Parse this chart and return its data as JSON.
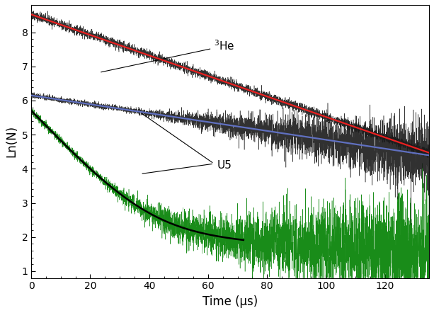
{
  "title": "",
  "xlabel": "Time (μs)",
  "ylabel": "Ln(N)",
  "xlim": [
    0,
    135
  ],
  "ylim": [
    0.8,
    8.8
  ],
  "yticks": [
    1,
    2,
    3,
    4,
    5,
    6,
    7,
    8
  ],
  "xticks": [
    0,
    20,
    40,
    60,
    80,
    100,
    120
  ],
  "he3_label": "$^{3}$He",
  "u5_label": "U5",
  "he3_start": 8.52,
  "he3_decay": 0.03,
  "u5_fit_start": 6.15,
  "u5_fit_decay": 0.013,
  "green_A1": 290,
  "green_lam1": 0.092,
  "green_A2": 9.5,
  "green_lam2": 0.0055,
  "noise_seed": 42,
  "background_color": "#ffffff",
  "he3_noise_color": "#1a1a1a",
  "u5_noise_color": "#1a1a1a",
  "green_noise_color": "#008000",
  "red_fit_color": "#e82020",
  "blue_fit_color": "#6070c0",
  "black_fit_color": "#000000",
  "figsize": [
    6.13,
    4.42
  ],
  "dpi": 100
}
